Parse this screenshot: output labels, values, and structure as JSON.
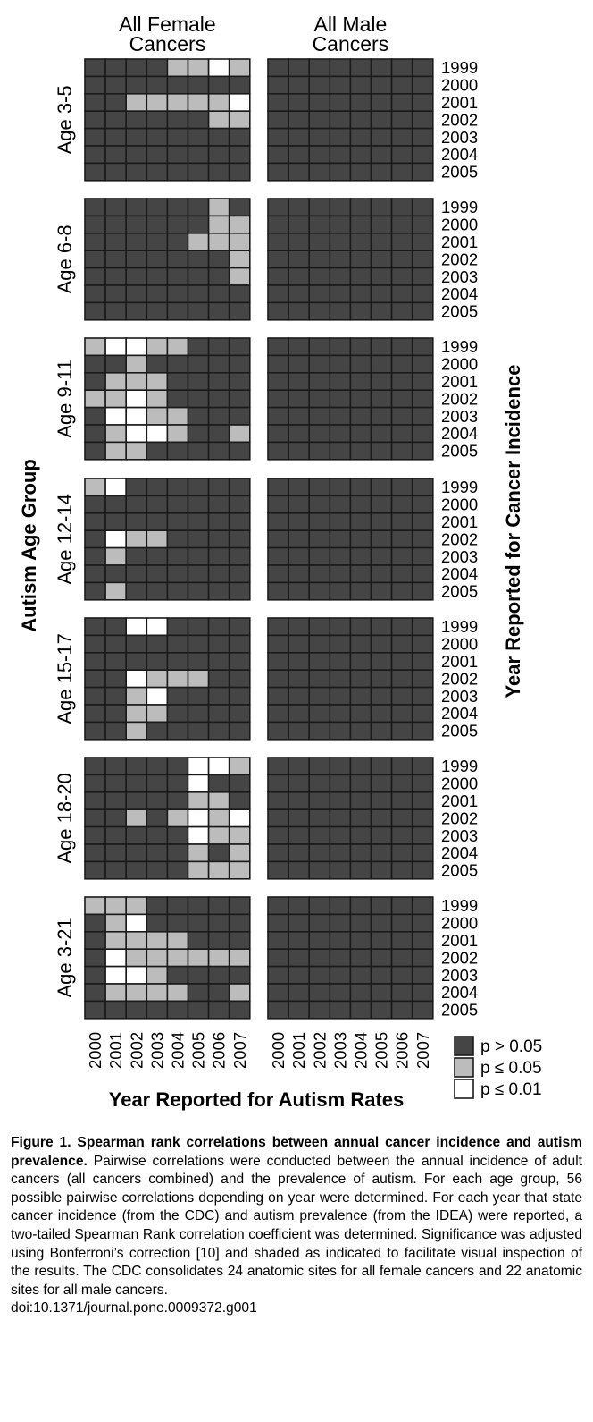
{
  "chart_data": {
    "type": "heatmap",
    "description_columns": [
      "All Female Cancers",
      "All Male Cancers"
    ],
    "column_titles": [
      [
        "All Female",
        "Cancers"
      ],
      [
        "All Male",
        "Cancers"
      ]
    ],
    "x_years": [
      "2000",
      "2001",
      "2002",
      "2003",
      "2004",
      "2005",
      "2006",
      "2007"
    ],
    "y_years": [
      "1999",
      "2000",
      "2001",
      "2002",
      "2003",
      "2004",
      "2005"
    ],
    "xlabel": "Year Reported for Autism Rates",
    "ylabel_left": "Autism Age Group",
    "ylabel_right": "Year Reported for Cancer Incidence",
    "levels": {
      "0": "p > 0.05",
      "1": "p ≤ 0.05",
      "2": "p ≤ 0.01"
    },
    "colors": {
      "0": "#454545",
      "1": "#bcbcbc",
      "2": "#ffffff",
      "border": "#1a1a1a"
    },
    "legend": [
      {
        "label": "p > 0.05",
        "level": 0
      },
      {
        "label": "p ≤ 0.05",
        "level": 1
      },
      {
        "label": "p ≤ 0.01",
        "level": 2
      }
    ],
    "panels": [
      {
        "age": "Age 3-5",
        "female": [
          [
            0,
            0,
            0,
            0,
            1,
            1,
            2,
            1
          ],
          [
            0,
            0,
            0,
            0,
            0,
            0,
            0,
            0
          ],
          [
            0,
            0,
            1,
            1,
            1,
            1,
            1,
            2
          ],
          [
            0,
            0,
            0,
            0,
            0,
            0,
            1,
            1
          ],
          [
            0,
            0,
            0,
            0,
            0,
            0,
            0,
            0
          ],
          [
            0,
            0,
            0,
            0,
            0,
            0,
            0,
            0
          ],
          [
            0,
            0,
            0,
            0,
            0,
            0,
            0,
            0
          ]
        ]
      },
      {
        "age": "Age 6-8",
        "female": [
          [
            0,
            0,
            0,
            0,
            0,
            0,
            1,
            0
          ],
          [
            0,
            0,
            0,
            0,
            0,
            0,
            1,
            1
          ],
          [
            0,
            0,
            0,
            0,
            0,
            1,
            1,
            1
          ],
          [
            0,
            0,
            0,
            0,
            0,
            0,
            0,
            1
          ],
          [
            0,
            0,
            0,
            0,
            0,
            0,
            0,
            1
          ],
          [
            0,
            0,
            0,
            0,
            0,
            0,
            0,
            0
          ],
          [
            0,
            0,
            0,
            0,
            0,
            0,
            0,
            0
          ]
        ]
      },
      {
        "age": "Age 9-11",
        "female": [
          [
            1,
            2,
            2,
            1,
            1,
            0,
            0,
            0
          ],
          [
            0,
            0,
            1,
            0,
            0,
            0,
            0,
            0
          ],
          [
            0,
            1,
            1,
            1,
            0,
            0,
            0,
            0
          ],
          [
            1,
            1,
            2,
            1,
            0,
            0,
            0,
            0
          ],
          [
            0,
            2,
            2,
            1,
            1,
            0,
            0,
            0
          ],
          [
            0,
            1,
            2,
            2,
            1,
            0,
            0,
            1
          ],
          [
            0,
            1,
            1,
            0,
            0,
            0,
            0,
            0
          ]
        ]
      },
      {
        "age": "Age 12-14",
        "female": [
          [
            1,
            2,
            0,
            0,
            0,
            0,
            0,
            0
          ],
          [
            0,
            0,
            0,
            0,
            0,
            0,
            0,
            0
          ],
          [
            0,
            0,
            0,
            0,
            0,
            0,
            0,
            0
          ],
          [
            0,
            2,
            1,
            1,
            0,
            0,
            0,
            0
          ],
          [
            0,
            1,
            0,
            0,
            0,
            0,
            0,
            0
          ],
          [
            0,
            0,
            0,
            0,
            0,
            0,
            0,
            0
          ],
          [
            0,
            1,
            0,
            0,
            0,
            0,
            0,
            0
          ]
        ]
      },
      {
        "age": "Age 15-17",
        "female": [
          [
            0,
            0,
            2,
            2,
            0,
            0,
            0,
            0
          ],
          [
            0,
            0,
            0,
            0,
            0,
            0,
            0,
            0
          ],
          [
            0,
            0,
            0,
            0,
            0,
            0,
            0,
            0
          ],
          [
            0,
            0,
            2,
            1,
            1,
            1,
            0,
            0
          ],
          [
            0,
            0,
            1,
            2,
            0,
            0,
            0,
            0
          ],
          [
            0,
            0,
            1,
            1,
            0,
            0,
            0,
            0
          ],
          [
            0,
            0,
            1,
            0,
            0,
            0,
            0,
            0
          ]
        ]
      },
      {
        "age": "Age 18-20",
        "female": [
          [
            0,
            0,
            0,
            0,
            0,
            2,
            2,
            1
          ],
          [
            0,
            0,
            0,
            0,
            0,
            2,
            0,
            0
          ],
          [
            0,
            0,
            0,
            0,
            0,
            1,
            1,
            0
          ],
          [
            0,
            0,
            1,
            0,
            1,
            2,
            1,
            2
          ],
          [
            0,
            0,
            0,
            0,
            0,
            2,
            1,
            1
          ],
          [
            0,
            0,
            0,
            0,
            0,
            1,
            0,
            1
          ],
          [
            0,
            0,
            0,
            0,
            0,
            1,
            1,
            1
          ]
        ]
      },
      {
        "age": "Age 3-21",
        "female": [
          [
            1,
            1,
            1,
            0,
            0,
            0,
            0,
            0
          ],
          [
            0,
            1,
            2,
            0,
            0,
            0,
            0,
            0
          ],
          [
            0,
            1,
            1,
            1,
            1,
            0,
            0,
            0
          ],
          [
            0,
            2,
            1,
            1,
            1,
            1,
            1,
            1
          ],
          [
            0,
            2,
            2,
            1,
            0,
            0,
            0,
            0
          ],
          [
            0,
            1,
            1,
            1,
            1,
            0,
            0,
            1
          ],
          [
            0,
            0,
            0,
            0,
            0,
            0,
            0,
            0
          ]
        ]
      }
    ]
  },
  "caption": {
    "title": "Figure 1. Spearman rank correlations between annual cancer incidence and autism prevalence.",
    "body": "Pairwise correlations were conducted between the annual incidence of adult cancers (all cancers combined) and the prevalence of autism. For each age group, 56 possible pairwise correlations depending on year were determined. For each year that state cancer incidence (from the CDC) and autism prevalence (from the IDEA) were reported, a two-tailed Spearman Rank correlation coefficient was determined. Significance was adjusted using Bonferroni’s correction [10] and shaded as indicated to facilitate visual inspection of the results. The CDC consolidates 24 anatomic sites for all female cancers and 22 anatomic sites for all male cancers.",
    "doi": "doi:10.1371/journal.pone.0009372.g001"
  }
}
